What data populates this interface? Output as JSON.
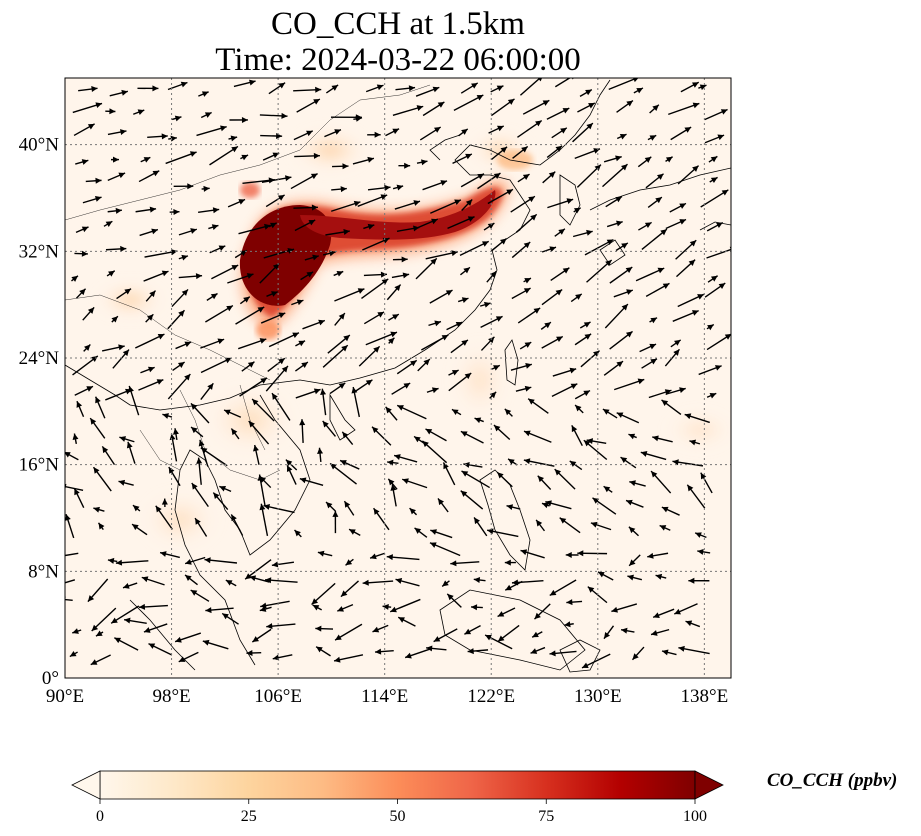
{
  "title": {
    "line1": "CO_CCH at 1.5km",
    "line2": "Time: 2024-03-22 06:00:00"
  },
  "map": {
    "extent": {
      "lon_min": 90,
      "lon_max": 140,
      "lat_min": 0,
      "lat_max": 45
    },
    "lon_ticks": [
      {
        "value": 90,
        "label": "90°E"
      },
      {
        "value": 98,
        "label": "98°E"
      },
      {
        "value": 106,
        "label": "106°E"
      },
      {
        "value": 114,
        "label": "114°E"
      },
      {
        "value": 122,
        "label": "122°E"
      },
      {
        "value": 130,
        "label": "130°E"
      },
      {
        "value": 138,
        "label": "138°E"
      }
    ],
    "lat_ticks": [
      {
        "value": 0,
        "label": "0°"
      },
      {
        "value": 8,
        "label": "8°N"
      },
      {
        "value": 16,
        "label": "16°N"
      },
      {
        "value": 24,
        "label": "24°N"
      },
      {
        "value": 32,
        "label": "32°N"
      },
      {
        "value": 40,
        "label": "40°N"
      }
    ],
    "gridlines": true,
    "background_color": "#fff5eb",
    "plume_color": "#7f0000",
    "plume_axis": [
      [
        103,
        31.5
      ],
      [
        106,
        33
      ],
      [
        110,
        33
      ],
      [
        114,
        32.6
      ],
      [
        118,
        33.5
      ],
      [
        121,
        35
      ],
      [
        122,
        37
      ]
    ]
  },
  "colorbar": {
    "min": 0,
    "max": 100,
    "extend": "both",
    "cmap": "OrRd",
    "stops": [
      "#fff7ec",
      "#fee8c8",
      "#fdd49e",
      "#fdbb84",
      "#fc8d59",
      "#ef6548",
      "#d7301f",
      "#b30000",
      "#7f0000"
    ],
    "ticks": [
      {
        "value": 0,
        "label": "0"
      },
      {
        "value": 25,
        "label": "25"
      },
      {
        "value": 50,
        "label": "50"
      },
      {
        "value": 75,
        "label": "75"
      },
      {
        "value": 100,
        "label": "100"
      }
    ],
    "label": "CO_CCH (ppbv)"
  }
}
